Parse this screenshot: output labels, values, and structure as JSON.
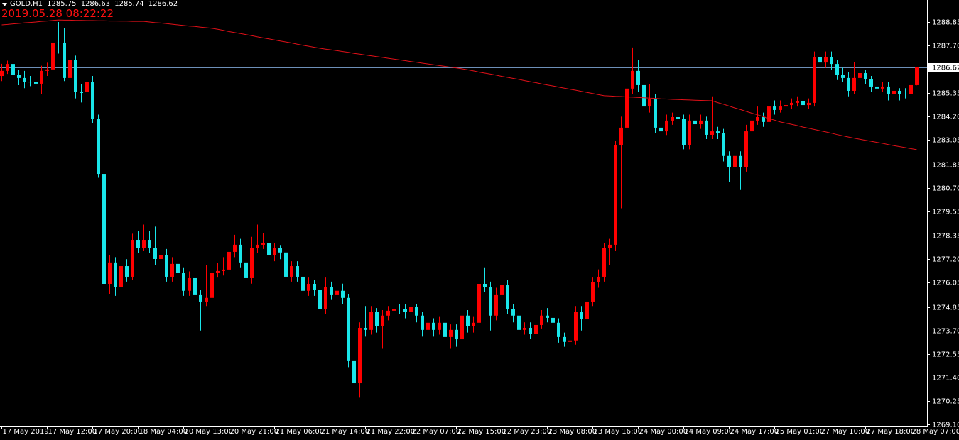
{
  "chart_data": {
    "type": "candlestick",
    "symbol": "GOLD,H1",
    "header_values": [
      1285.75,
      1286.63,
      1285.74,
      1286.62
    ],
    "timestamp": "2019.05.28 08:22:22",
    "up_color": "#ff0000",
    "down_color": "#19e6ea",
    "ma_color": "#e01018",
    "price_line_color": "#6d8fb8",
    "current_price": 1286.62,
    "ylim": [
      1269.02,
      1289.93
    ],
    "yticks": [
      1288.85,
      {
        "value": 1287.7,
        "label": "1287.70"
      },
      1285.35,
      {
        "value": 1284.2,
        "label": "1284.20"
      },
      1283.05,
      1281.85,
      {
        "value": 1280.7,
        "label": "1280.70"
      },
      1279.55,
      1278.35,
      {
        "value": 1277.2,
        "label": "1277.20"
      },
      1276.05,
      1274.85,
      {
        "value": 1273.7,
        "label": "1273.70"
      },
      1272.55,
      {
        "value": 1271.4,
        "label": "1271.40"
      },
      1270.25,
      {
        "value": 1269.1,
        "label": "1269.10"
      }
    ],
    "categories": [
      "17 May 2019",
      null,
      null,
      null,
      null,
      null,
      null,
      null,
      "17 May 12:00",
      null,
      null,
      null,
      null,
      null,
      null,
      null,
      "17 May 20:00",
      null,
      null,
      null,
      null,
      null,
      null,
      null,
      "18 May 04:00",
      null,
      null,
      null,
      null,
      null,
      null,
      null,
      "20 May 13:00",
      null,
      null,
      null,
      null,
      null,
      null,
      null,
      "20 May 21:00",
      null,
      null,
      null,
      null,
      null,
      null,
      null,
      "21 May 06:00",
      null,
      null,
      null,
      null,
      null,
      null,
      null,
      "21 May 14:00",
      null,
      null,
      null,
      null,
      null,
      null,
      null,
      "21 May 22:00",
      null,
      null,
      null,
      null,
      null,
      null,
      null,
      "22 May 07:00",
      null,
      null,
      null,
      null,
      null,
      null,
      null,
      "22 May 15:00",
      null,
      null,
      null,
      null,
      null,
      null,
      null,
      "22 May 23:00",
      null,
      null,
      null,
      null,
      null,
      null,
      null,
      "23 May 08:00",
      null,
      null,
      null,
      null,
      null,
      null,
      null,
      "23 May 16:00",
      null,
      null,
      null,
      null,
      null,
      null,
      null,
      "24 May 00:00",
      null,
      null,
      null,
      null,
      null,
      null,
      null,
      "24 May 09:00",
      null,
      null,
      null,
      null,
      null,
      null,
      null,
      "24 May 17:00",
      null,
      null,
      null,
      null,
      null,
      null,
      null,
      "25 May 01:00",
      null,
      null,
      null,
      null,
      null,
      null,
      null,
      "27 May 10:00",
      null,
      null,
      null,
      null,
      null,
      null,
      null,
      "27 May 18:00",
      null,
      null,
      null,
      null,
      null,
      null,
      null,
      "28 May 07:00",
      null
    ],
    "candles": [
      [
        1286.2,
        1286.8,
        1285.95,
        1286.45
      ],
      [
        1286.45,
        1286.95,
        1286.3,
        1286.79
      ],
      [
        1286.79,
        1286.95,
        1286.0,
        1286.27
      ],
      [
        1286.27,
        1286.5,
        1285.75,
        1286.1
      ],
      [
        1286.1,
        1286.45,
        1285.6,
        1285.92
      ],
      [
        1285.92,
        1286.2,
        1285.7,
        1285.92
      ],
      [
        1285.92,
        1286.15,
        1284.95,
        1285.82
      ],
      [
        1285.82,
        1286.7,
        1285.3,
        1286.45
      ],
      [
        1286.45,
        1286.85,
        1286.2,
        1286.52
      ],
      [
        1286.52,
        1288.35,
        1286.4,
        1287.84
      ],
      [
        1287.84,
        1288.85,
        1287.3,
        1287.84
      ],
      [
        1287.84,
        1288.55,
        1285.95,
        1286.1
      ],
      [
        1286.1,
        1287.2,
        1285.8,
        1286.97
      ],
      [
        1286.97,
        1287.2,
        1285.1,
        1285.4
      ],
      [
        1285.4,
        1285.8,
        1284.9,
        1285.4
      ],
      [
        1285.4,
        1286.65,
        1285.2,
        1285.92
      ],
      [
        1285.92,
        1286.2,
        1283.9,
        1284.08
      ],
      [
        1284.08,
        1284.3,
        1281.2,
        1281.39
      ],
      [
        1281.39,
        1281.8,
        1275.5,
        1275.99
      ],
      [
        1275.99,
        1277.4,
        1275.5,
        1277.04
      ],
      [
        1277.04,
        1277.3,
        1275.4,
        1275.82
      ],
      [
        1275.82,
        1277.1,
        1274.9,
        1276.86
      ],
      [
        1276.86,
        1277.2,
        1276.1,
        1276.34
      ],
      [
        1276.34,
        1278.45,
        1276.2,
        1278.15
      ],
      [
        1278.15,
        1278.6,
        1277.5,
        1277.74
      ],
      [
        1277.74,
        1278.9,
        1277.6,
        1278.15
      ],
      [
        1278.15,
        1278.6,
        1277.5,
        1277.74
      ],
      [
        1277.74,
        1278.8,
        1276.9,
        1277.21
      ],
      [
        1277.21,
        1278.3,
        1277.0,
        1277.39
      ],
      [
        1277.39,
        1277.7,
        1276.1,
        1276.34
      ],
      [
        1276.34,
        1277.3,
        1276.1,
        1276.97
      ],
      [
        1276.97,
        1277.2,
        1276.3,
        1276.52
      ],
      [
        1276.52,
        1276.8,
        1275.4,
        1275.65
      ],
      [
        1275.65,
        1276.6,
        1275.4,
        1276.27
      ],
      [
        1276.27,
        1276.5,
        1274.6,
        1275.47
      ],
      [
        1275.47,
        1275.7,
        1273.7,
        1275.12
      ],
      [
        1275.12,
        1276.9,
        1274.9,
        1275.3
      ],
      [
        1275.3,
        1276.8,
        1275.1,
        1276.52
      ],
      [
        1276.52,
        1277.0,
        1276.3,
        1276.62
      ],
      [
        1276.62,
        1277.3,
        1276.4,
        1276.69
      ],
      [
        1276.69,
        1278.1,
        1276.4,
        1277.56
      ],
      [
        1277.56,
        1278.4,
        1277.3,
        1277.91
      ],
      [
        1277.91,
        1278.2,
        1276.8,
        1277.04
      ],
      [
        1277.04,
        1277.3,
        1275.9,
        1276.27
      ],
      [
        1276.27,
        1278.3,
        1276.0,
        1277.74
      ],
      [
        1277.74,
        1278.9,
        1277.5,
        1277.91
      ],
      [
        1277.91,
        1278.5,
        1277.7,
        1278.01
      ],
      [
        1278.01,
        1278.2,
        1277.1,
        1277.39
      ],
      [
        1277.39,
        1278.0,
        1277.1,
        1277.74
      ],
      [
        1277.74,
        1277.9,
        1277.2,
        1277.53
      ],
      [
        1277.53,
        1277.8,
        1276.1,
        1276.34
      ],
      [
        1276.34,
        1277.1,
        1276.1,
        1276.86
      ],
      [
        1276.86,
        1277.1,
        1276.1,
        1276.34
      ],
      [
        1276.34,
        1276.6,
        1275.4,
        1275.65
      ],
      [
        1275.65,
        1276.3,
        1275.4,
        1275.99
      ],
      [
        1275.99,
        1276.2,
        1275.4,
        1275.71
      ],
      [
        1275.71,
        1276.0,
        1274.5,
        1274.77
      ],
      [
        1274.77,
        1276.3,
        1274.5,
        1275.82
      ],
      [
        1275.82,
        1276.1,
        1275.2,
        1275.47
      ],
      [
        1275.47,
        1276.2,
        1275.2,
        1275.65
      ],
      [
        1275.65,
        1276.0,
        1275.0,
        1275.3
      ],
      [
        1275.3,
        1275.5,
        1271.9,
        1272.23
      ],
      [
        1272.23,
        1272.5,
        1269.4,
        1271.11
      ],
      [
        1271.11,
        1274.1,
        1270.4,
        1273.83
      ],
      [
        1273.83,
        1274.9,
        1273.4,
        1273.73
      ],
      [
        1273.73,
        1274.9,
        1273.5,
        1274.6
      ],
      [
        1274.6,
        1274.8,
        1273.6,
        1273.9
      ],
      [
        1273.9,
        1274.7,
        1272.8,
        1274.43
      ],
      [
        1274.43,
        1274.9,
        1274.2,
        1274.67
      ],
      [
        1274.67,
        1275.1,
        1274.5,
        1274.77
      ],
      [
        1274.77,
        1275.0,
        1274.5,
        1274.77
      ],
      [
        1274.77,
        1275.0,
        1274.3,
        1274.6
      ],
      [
        1274.6,
        1275.1,
        1274.4,
        1274.84
      ],
      [
        1274.84,
        1275.0,
        1274.1,
        1274.43
      ],
      [
        1274.43,
        1274.6,
        1273.4,
        1273.73
      ],
      [
        1273.73,
        1274.4,
        1273.5,
        1274.08
      ],
      [
        1274.08,
        1274.3,
        1273.4,
        1273.73
      ],
      [
        1273.73,
        1274.4,
        1273.5,
        1274.08
      ],
      [
        1274.08,
        1274.3,
        1273.1,
        1273.38
      ],
      [
        1273.38,
        1274.0,
        1272.8,
        1273.73
      ],
      [
        1273.73,
        1274.0,
        1272.9,
        1273.27
      ],
      [
        1273.27,
        1274.8,
        1273.0,
        1274.43
      ],
      [
        1274.43,
        1274.7,
        1273.6,
        1273.9
      ],
      [
        1273.9,
        1274.4,
        1273.6,
        1274.08
      ],
      [
        1274.08,
        1276.3,
        1273.5,
        1275.99
      ],
      [
        1275.99,
        1276.8,
        1275.6,
        1275.82
      ],
      [
        1275.82,
        1276.1,
        1273.7,
        1274.43
      ],
      [
        1274.43,
        1275.8,
        1274.2,
        1275.47
      ],
      [
        1275.47,
        1276.5,
        1275.2,
        1275.92
      ],
      [
        1275.92,
        1276.2,
        1274.5,
        1274.77
      ],
      [
        1274.77,
        1275.0,
        1274.1,
        1274.43
      ],
      [
        1274.43,
        1274.7,
        1273.5,
        1273.73
      ],
      [
        1273.73,
        1274.1,
        1273.5,
        1273.83
      ],
      [
        1273.83,
        1274.1,
        1273.3,
        1273.55
      ],
      [
        1273.55,
        1274.2,
        1273.4,
        1273.97
      ],
      [
        1273.97,
        1274.7,
        1273.8,
        1274.43
      ],
      [
        1274.43,
        1274.8,
        1274.1,
        1274.32
      ],
      [
        1274.32,
        1274.6,
        1273.8,
        1274.08
      ],
      [
        1274.08,
        1274.3,
        1273.1,
        1273.38
      ],
      [
        1273.38,
        1273.6,
        1272.9,
        1273.14
      ],
      [
        1273.14,
        1273.6,
        1272.9,
        1273.21
      ],
      [
        1273.21,
        1274.9,
        1273.0,
        1274.6
      ],
      [
        1274.6,
        1274.9,
        1273.7,
        1274.25
      ],
      [
        1274.25,
        1275.4,
        1274.0,
        1275.12
      ],
      [
        1275.12,
        1276.3,
        1274.9,
        1276.06
      ],
      [
        1276.06,
        1276.7,
        1275.8,
        1276.34
      ],
      [
        1276.34,
        1278.0,
        1276.1,
        1277.74
      ],
      [
        1277.74,
        1278.2,
        1276.9,
        1277.91
      ],
      [
        1277.91,
        1283.0,
        1277.6,
        1282.79
      ],
      [
        1282.79,
        1284.2,
        1279.7,
        1283.66
      ],
      [
        1283.66,
        1285.9,
        1283.4,
        1285.58
      ],
      [
        1285.58,
        1287.6,
        1285.3,
        1286.45
      ],
      [
        1286.45,
        1287.0,
        1285.4,
        1285.75
      ],
      [
        1285.75,
        1286.6,
        1284.4,
        1284.7
      ],
      [
        1284.7,
        1285.8,
        1284.4,
        1285.05
      ],
      [
        1285.05,
        1285.3,
        1283.4,
        1283.66
      ],
      [
        1283.66,
        1284.0,
        1283.2,
        1283.48
      ],
      [
        1283.48,
        1284.3,
        1283.3,
        1284.01
      ],
      [
        1284.01,
        1284.4,
        1283.8,
        1284.18
      ],
      [
        1284.18,
        1284.4,
        1283.7,
        1284.08
      ],
      [
        1284.08,
        1284.3,
        1282.6,
        1282.79
      ],
      [
        1282.79,
        1284.3,
        1282.6,
        1284.01
      ],
      [
        1284.01,
        1284.2,
        1283.6,
        1283.83
      ],
      [
        1283.83,
        1284.3,
        1283.6,
        1284.01
      ],
      [
        1284.01,
        1284.2,
        1283.1,
        1283.31
      ],
      [
        1283.31,
        1285.2,
        1283.1,
        1283.48
      ],
      [
        1283.48,
        1283.7,
        1283.1,
        1283.38
      ],
      [
        1283.38,
        1283.6,
        1282.0,
        1282.27
      ],
      [
        1282.27,
        1282.5,
        1281.0,
        1281.74
      ],
      [
        1281.74,
        1282.5,
        1281.4,
        1282.27
      ],
      [
        1282.27,
        1282.5,
        1280.6,
        1281.74
      ],
      [
        1281.74,
        1283.8,
        1281.5,
        1283.48
      ],
      [
        1283.48,
        1284.3,
        1280.7,
        1284.01
      ],
      [
        1284.01,
        1284.7,
        1283.8,
        1284.18
      ],
      [
        1284.18,
        1284.4,
        1283.7,
        1283.94
      ],
      [
        1283.94,
        1285.0,
        1283.7,
        1284.7
      ],
      [
        1284.7,
        1285.0,
        1284.3,
        1284.53
      ],
      [
        1284.53,
        1285.0,
        1284.4,
        1284.7
      ],
      [
        1284.7,
        1285.4,
        1284.5,
        1284.77
      ],
      [
        1284.77,
        1285.1,
        1284.6,
        1284.88
      ],
      [
        1284.88,
        1285.2,
        1284.7,
        1284.98
      ],
      [
        1284.98,
        1285.2,
        1284.2,
        1284.77
      ],
      [
        1284.77,
        1285.1,
        1284.6,
        1284.88
      ],
      [
        1284.88,
        1287.4,
        1284.7,
        1287.14
      ],
      [
        1287.14,
        1287.4,
        1286.6,
        1286.86
      ],
      [
        1286.86,
        1287.4,
        1286.6,
        1287.14
      ],
      [
        1287.14,
        1287.4,
        1286.5,
        1286.79
      ],
      [
        1286.79,
        1287.0,
        1286.0,
        1286.27
      ],
      [
        1286.27,
        1286.6,
        1285.9,
        1286.1
      ],
      [
        1286.1,
        1286.4,
        1285.2,
        1285.47
      ],
      [
        1285.47,
        1286.9,
        1285.3,
        1286.1
      ],
      [
        1286.1,
        1286.6,
        1285.9,
        1286.34
      ],
      [
        1286.34,
        1286.5,
        1285.8,
        1286.03
      ],
      [
        1286.03,
        1286.2,
        1285.4,
        1285.68
      ],
      [
        1285.68,
        1286.0,
        1285.3,
        1285.58
      ],
      [
        1285.58,
        1285.9,
        1285.4,
        1285.68
      ],
      [
        1285.68,
        1285.9,
        1285.0,
        1285.33
      ],
      [
        1285.33,
        1285.7,
        1285.1,
        1285.47
      ],
      [
        1285.47,
        1285.6,
        1285.0,
        1285.33
      ],
      [
        1285.33,
        1285.6,
        1285.1,
        1285.33
      ],
      [
        1285.33,
        1286.0,
        1285.1,
        1285.75
      ],
      [
        1285.75,
        1286.63,
        1285.74,
        1286.62
      ]
    ],
    "ma_values": [
      1288.71,
      1288.73,
      1288.76,
      1288.78,
      1288.81,
      1288.83,
      1288.85,
      1288.88,
      1288.9,
      1288.93,
      1288.95,
      1288.94,
      1288.94,
      1288.93,
      1288.93,
      1288.92,
      1288.92,
      1288.91,
      1288.91,
      1288.9,
      1288.9,
      1288.89,
      1288.89,
      1288.88,
      1288.88,
      1288.88,
      1288.85,
      1288.82,
      1288.8,
      1288.77,
      1288.74,
      1288.71,
      1288.68,
      1288.65,
      1288.63,
      1288.6,
      1288.57,
      1288.54,
      1288.49,
      1288.44,
      1288.38,
      1288.33,
      1288.28,
      1288.23,
      1288.18,
      1288.12,
      1288.07,
      1288.02,
      1287.97,
      1287.92,
      1287.87,
      1287.82,
      1287.76,
      1287.71,
      1287.66,
      1287.61,
      1287.56,
      1287.52,
      1287.48,
      1287.44,
      1287.4,
      1287.36,
      1287.31,
      1287.27,
      1287.23,
      1287.19,
      1287.15,
      1287.11,
      1287.07,
      1287.03,
      1286.99,
      1286.95,
      1286.91,
      1286.87,
      1286.83,
      1286.79,
      1286.75,
      1286.71,
      1286.67,
      1286.63,
      1286.59,
      1286.55,
      1286.5,
      1286.45,
      1286.39,
      1286.34,
      1286.29,
      1286.24,
      1286.18,
      1286.13,
      1286.08,
      1286.03,
      1285.97,
      1285.92,
      1285.87,
      1285.81,
      1285.76,
      1285.71,
      1285.65,
      1285.6,
      1285.55,
      1285.5,
      1285.44,
      1285.39,
      1285.34,
      1285.28,
      1285.23,
      1285.22,
      1285.2,
      1285.19,
      1285.17,
      1285.16,
      1285.14,
      1285.13,
      1285.11,
      1285.1,
      1285.08,
      1285.07,
      1285.05,
      1285.04,
      1285.03,
      1285.02,
      1285.01,
      1285.0,
      1284.99,
      1284.98,
      1284.89,
      1284.81,
      1284.72,
      1284.63,
      1284.55,
      1284.46,
      1284.37,
      1284.29,
      1284.2,
      1284.11,
      1284.03,
      1283.94,
      1283.88,
      1283.82,
      1283.76,
      1283.69,
      1283.63,
      1283.57,
      1283.51,
      1283.45,
      1283.39,
      1283.32,
      1283.26,
      1283.2,
      1283.14,
      1283.09,
      1283.04,
      1282.99,
      1282.94,
      1282.89,
      1282.83,
      1282.78,
      1282.73,
      1282.68,
      1282.63,
      1282.58
    ]
  }
}
